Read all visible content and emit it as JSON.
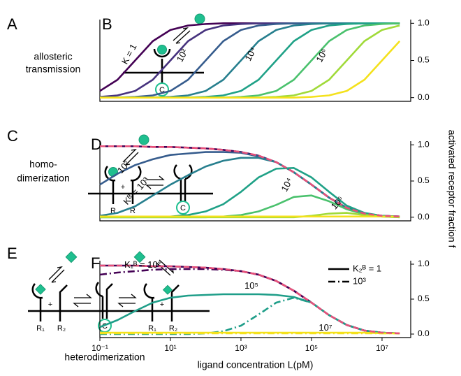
{
  "figure": {
    "y_label": "activated receptor fraction f"
  },
  "diagrams": [
    {
      "panel": "A",
      "caption": [
        "allosteric",
        "transmission"
      ],
      "labels": [
        "C"
      ]
    },
    {
      "panel": "C",
      "caption": [
        "homo-",
        "dimerization"
      ],
      "labels": [
        "R",
        "R",
        "C",
        "+"
      ]
    },
    {
      "panel": "E",
      "caption": [
        "heterodimerization"
      ],
      "labels": [
        "R₁",
        "R₂",
        "C",
        "R₁",
        "R₂",
        "+",
        "+"
      ]
    }
  ],
  "chart_data": [
    {
      "type": "line",
      "panel": "B",
      "x": [
        0.1,
        0.316,
        1,
        3.16,
        10,
        31.6,
        100,
        316,
        1000,
        3160,
        10000,
        31600,
        100000,
        316000,
        1000000,
        3160000,
        10000000,
        31600000
      ],
      "xlim": [
        0.1,
        65000000
      ],
      "log_x": true,
      "ylim": [
        -0.05,
        1.05
      ],
      "yticks": [
        {
          "value": 0,
          "label": "0.0"
        },
        {
          "value": 0.5,
          "label": "0.5"
        },
        {
          "value": 1,
          "label": "1.0"
        }
      ],
      "series": [
        {
          "color": "#440154",
          "dash": "solid",
          "values": [
            0.09,
            0.24,
            0.5,
            0.76,
            0.91,
            0.97,
            0.99,
            1,
            1,
            1,
            1,
            1,
            1,
            1,
            1,
            1,
            1,
            1
          ]
        },
        {
          "color": "#46327e",
          "dash": "solid",
          "values": [
            0.01,
            0.03,
            0.09,
            0.24,
            0.5,
            0.76,
            0.91,
            0.97,
            0.99,
            1,
            1,
            1,
            1,
            1,
            1,
            1,
            1,
            1
          ]
        },
        {
          "color": "#365c8d",
          "dash": "solid",
          "values": [
            0,
            0,
            0.01,
            0.03,
            0.09,
            0.24,
            0.5,
            0.76,
            0.91,
            0.97,
            0.99,
            1,
            1,
            1,
            1,
            1,
            1,
            1
          ]
        },
        {
          "color": "#277f8e",
          "dash": "solid",
          "values": [
            0,
            0,
            0,
            0,
            0.01,
            0.03,
            0.09,
            0.24,
            0.5,
            0.76,
            0.91,
            0.97,
            0.99,
            1,
            1,
            1,
            1,
            1
          ]
        },
        {
          "color": "#1fa187",
          "dash": "solid",
          "values": [
            0,
            0,
            0,
            0,
            0,
            0,
            0.01,
            0.03,
            0.09,
            0.24,
            0.5,
            0.76,
            0.91,
            0.97,
            0.99,
            1,
            1,
            1
          ]
        },
        {
          "color": "#4ac16d",
          "dash": "solid",
          "values": [
            0,
            0,
            0,
            0,
            0,
            0,
            0,
            0,
            0.01,
            0.03,
            0.09,
            0.24,
            0.5,
            0.76,
            0.91,
            0.97,
            0.99,
            1
          ]
        },
        {
          "color": "#a0da39",
          "dash": "solid",
          "values": [
            0,
            0,
            0,
            0,
            0,
            0,
            0,
            0,
            0,
            0,
            0.01,
            0.03,
            0.09,
            0.24,
            0.5,
            0.76,
            0.91,
            0.97
          ]
        },
        {
          "color": "#f4e11c",
          "dash": "solid",
          "values": [
            0,
            0,
            0,
            0,
            0,
            0,
            0,
            0,
            0,
            0,
            0,
            0,
            0.01,
            0.03,
            0.09,
            0.24,
            0.5,
            0.76
          ]
        }
      ],
      "annotations": [
        {
          "text": "K = 1",
          "color": "#440154"
        },
        {
          "text": "10²",
          "color": "#365c8d"
        },
        {
          "text": "10⁴",
          "color": "#1fa187"
        },
        {
          "text": "10⁶",
          "color": "#a0da39"
        }
      ]
    },
    {
      "type": "line",
      "panel": "D",
      "x": [
        0.1,
        0.316,
        1,
        3.16,
        10,
        31.6,
        100,
        316,
        1000,
        3160,
        10000,
        31600,
        100000,
        316000,
        1000000,
        3160000,
        10000000,
        31600000
      ],
      "xlim": [
        0.1,
        65000000
      ],
      "log_x": true,
      "ylim": [
        -0.05,
        1.05
      ],
      "yticks": [
        {
          "value": 0,
          "label": "0.0"
        },
        {
          "value": 0.5,
          "label": "0.5"
        },
        {
          "value": 1,
          "label": "1.0"
        }
      ],
      "series": [
        {
          "color": "#440154",
          "dash": "solid",
          "values": [
            0.98,
            0.98,
            0.98,
            0.97,
            0.97,
            0.96,
            0.95,
            0.93,
            0.9,
            0.85,
            0.76,
            0.62,
            0.45,
            0.27,
            0.13,
            0.05,
            0.02,
            0.01
          ]
        },
        {
          "color": "#365c8d",
          "dash": "solid",
          "values": [
            0.45,
            0.6,
            0.72,
            0.8,
            0.86,
            0.88,
            0.9,
            0.9,
            0.89,
            0.84,
            0.76,
            0.62,
            0.45,
            0.27,
            0.13,
            0.05,
            0.02,
            0.01
          ]
        },
        {
          "color": "#277f8e",
          "dash": "solid",
          "values": [
            0.02,
            0.06,
            0.15,
            0.3,
            0.45,
            0.58,
            0.7,
            0.78,
            0.82,
            0.82,
            0.76,
            0.62,
            0.45,
            0.27,
            0.13,
            0.05,
            0.02,
            0.01
          ]
        },
        {
          "color": "#1fa187",
          "dash": "solid",
          "values": [
            0,
            0,
            0,
            0.01,
            0.01,
            0.03,
            0.08,
            0.18,
            0.35,
            0.55,
            0.67,
            0.68,
            0.55,
            0.35,
            0.16,
            0.06,
            0.02,
            0.01
          ]
        },
        {
          "color": "#4ac16d",
          "dash": "solid",
          "values": [
            0,
            0,
            0,
            0,
            0,
            0,
            0,
            0.01,
            0.03,
            0.08,
            0.17,
            0.28,
            0.3,
            0.22,
            0.11,
            0.04,
            0.01,
            0
          ]
        },
        {
          "color": "#a0da39",
          "dash": "solid",
          "values": [
            0,
            0,
            0,
            0,
            0,
            0,
            0,
            0,
            0,
            0,
            0,
            0,
            0.02,
            0.05,
            0.06,
            0.03,
            0.01,
            0
          ]
        },
        {
          "color": "#f4e11c",
          "dash": "solid",
          "values": [
            0.01,
            0.01,
            0.01,
            0.01,
            0.01,
            0.01,
            0.01,
            0.01,
            0.01,
            0.01,
            0.01,
            0.01,
            0.01,
            0.01,
            0.01,
            0.01,
            0.01,
            0.01
          ]
        },
        {
          "color": "#e8507a",
          "dash": "dashed",
          "values": [
            0.98,
            0.98,
            0.98,
            0.97,
            0.97,
            0.96,
            0.95,
            0.93,
            0.9,
            0.85,
            0.76,
            0.62,
            0.45,
            0.27,
            0.13,
            0.05,
            0.02,
            0.01
          ]
        }
      ],
      "annotations": [
        {
          "text": "10²",
          "color": "#365c8d"
        },
        {
          "text": "Kᴮ = 10³",
          "color": "#277f8e"
        },
        {
          "text": "10⁴",
          "color": "#1fa187"
        },
        {
          "text": "10⁵",
          "color": "#4ac16d"
        }
      ]
    },
    {
      "type": "line",
      "panel": "F",
      "x_label": "ligand concentration L(pM)",
      "x": [
        0.1,
        0.316,
        1,
        3.16,
        10,
        31.6,
        100,
        316,
        1000,
        3160,
        10000,
        31600,
        100000,
        316000,
        1000000,
        3160000,
        10000000,
        31600000
      ],
      "xlim": [
        0.1,
        65000000
      ],
      "log_x": true,
      "ylim": [
        -0.05,
        1.05
      ],
      "xticks": [
        {
          "value": 0.1,
          "label": "10⁻¹"
        },
        {
          "value": 10,
          "label": "10¹"
        },
        {
          "value": 1000,
          "label": "10³"
        },
        {
          "value": 100000,
          "label": "10⁵"
        },
        {
          "value": 10000000,
          "label": "10⁷"
        }
      ],
      "yticks": [
        {
          "value": 0,
          "label": "0.0"
        },
        {
          "value": 0.5,
          "label": "0.5"
        },
        {
          "value": 1,
          "label": "1.0"
        }
      ],
      "legend": [
        {
          "label": "K₂ᴮ = 1",
          "dash": "solid"
        },
        {
          "label": "10³",
          "dash": "dashdot"
        }
      ],
      "series": [
        {
          "color": "#440154",
          "dash": "solid",
          "values": [
            0.98,
            0.98,
            0.98,
            0.97,
            0.97,
            0.96,
            0.95,
            0.93,
            0.9,
            0.85,
            0.76,
            0.62,
            0.45,
            0.27,
            0.13,
            0.05,
            0.02,
            0.01
          ]
        },
        {
          "color": "#440154",
          "dash": "dashdot",
          "values": [
            0.85,
            0.88,
            0.9,
            0.92,
            0.93,
            0.93,
            0.93,
            0.92,
            0.9,
            0.85,
            0.76,
            0.62,
            0.45,
            0.27,
            0.13,
            0.05,
            0.02,
            0.01
          ]
        },
        {
          "color": "#1f9e89",
          "dash": "solid",
          "values": [
            0.1,
            0.2,
            0.33,
            0.45,
            0.52,
            0.55,
            0.56,
            0.57,
            0.57,
            0.57,
            0.56,
            0.53,
            0.45,
            0.27,
            0.13,
            0.05,
            0.02,
            0.01
          ]
        },
        {
          "color": "#1f9e89",
          "dash": "dashdot",
          "values": [
            0,
            0,
            0,
            0,
            0,
            0,
            0.01,
            0.04,
            0.12,
            0.28,
            0.45,
            0.52,
            0.45,
            0.27,
            0.13,
            0.05,
            0.02,
            0.01
          ]
        },
        {
          "color": "#f4e11c",
          "dash": "solid",
          "values": [
            0.02,
            0.02,
            0.02,
            0.02,
            0.02,
            0.02,
            0.02,
            0.02,
            0.02,
            0.02,
            0.02,
            0.02,
            0.02,
            0.02,
            0.02,
            0.02,
            0.01,
            0.01
          ]
        },
        {
          "color": "#f4e11c",
          "dash": "dashdot",
          "values": [
            0.01,
            0.01,
            0.01,
            0.01,
            0.01,
            0.01,
            0.01,
            0.01,
            0.01,
            0.01,
            0.01,
            0.01,
            0.01,
            0.01,
            0.01,
            0.01,
            0.01,
            0.01
          ]
        },
        {
          "color": "#e8507a",
          "dash": "dashed",
          "values": [
            0.98,
            0.98,
            0.98,
            0.97,
            0.97,
            0.96,
            0.95,
            0.93,
            0.9,
            0.85,
            0.76,
            0.62,
            0.45,
            0.27,
            0.13,
            0.05,
            0.02,
            0.01
          ]
        }
      ],
      "annotations": [
        {
          "text": "K₁ᴮ = 10²",
          "color": "#5b1a6e"
        },
        {
          "text": "10⁵",
          "color": "#1f9e89"
        },
        {
          "text": "10⁷",
          "color": "#b5a300"
        }
      ]
    }
  ]
}
